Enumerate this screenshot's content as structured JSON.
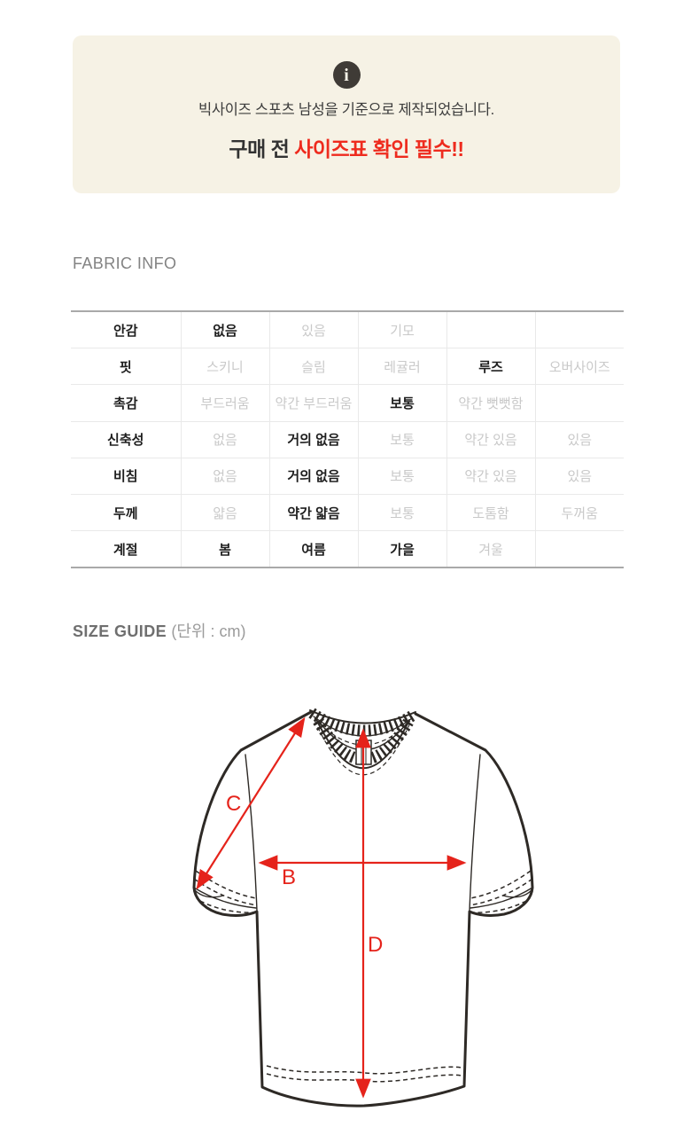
{
  "notice": {
    "icon_glyph": "i",
    "line1": "빅사이즈 스포츠 남성을 기준으로 제작되었습니다.",
    "line2_prefix": "구매 전 ",
    "line2_highlight": "사이즈표 확인 필수!!",
    "bg_color": "#f6f2e5",
    "highlight_color": "#ee2b1e"
  },
  "fabric_info": {
    "title": "FABRIC INFO",
    "rows": [
      {
        "label": "안감",
        "cells": [
          {
            "t": "없음",
            "on": true
          },
          {
            "t": "있음",
            "on": false
          },
          {
            "t": "기모",
            "on": false
          },
          {
            "t": "",
            "on": false
          },
          {
            "t": "",
            "on": false
          }
        ]
      },
      {
        "label": "핏",
        "cells": [
          {
            "t": "스키니",
            "on": false
          },
          {
            "t": "슬림",
            "on": false
          },
          {
            "t": "레귤러",
            "on": false
          },
          {
            "t": "루즈",
            "on": true
          },
          {
            "t": "오버사이즈",
            "on": false
          }
        ]
      },
      {
        "label": "촉감",
        "cells": [
          {
            "t": "부드러움",
            "on": false
          },
          {
            "t": "약간 부드러움",
            "on": false
          },
          {
            "t": "보통",
            "on": true
          },
          {
            "t": "약간 뻣뻣함",
            "on": false
          },
          {
            "t": "",
            "on": false
          }
        ]
      },
      {
        "label": "신축성",
        "cells": [
          {
            "t": "없음",
            "on": false
          },
          {
            "t": "거의 없음",
            "on": true
          },
          {
            "t": "보통",
            "on": false
          },
          {
            "t": "약간 있음",
            "on": false
          },
          {
            "t": "있음",
            "on": false
          }
        ]
      },
      {
        "label": "비침",
        "cells": [
          {
            "t": "없음",
            "on": false
          },
          {
            "t": "거의 없음",
            "on": true
          },
          {
            "t": "보통",
            "on": false
          },
          {
            "t": "약간 있음",
            "on": false
          },
          {
            "t": "있음",
            "on": false
          }
        ]
      },
      {
        "label": "두께",
        "cells": [
          {
            "t": "얇음",
            "on": false
          },
          {
            "t": "약간 얇음",
            "on": true
          },
          {
            "t": "보통",
            "on": false
          },
          {
            "t": "도톰함",
            "on": false
          },
          {
            "t": "두꺼움",
            "on": false
          }
        ]
      },
      {
        "label": "계절",
        "cells": [
          {
            "t": "봄",
            "on": true
          },
          {
            "t": "여름",
            "on": true
          },
          {
            "t": "가을",
            "on": true
          },
          {
            "t": "겨울",
            "on": false
          },
          {
            "t": "",
            "on": false
          }
        ]
      }
    ]
  },
  "size_guide": {
    "title": "SIZE GUIDE",
    "unit": "(단위 : cm)",
    "labels": {
      "b": "B",
      "c": "C",
      "d": "D"
    },
    "arrow_color": "#e5231b"
  }
}
